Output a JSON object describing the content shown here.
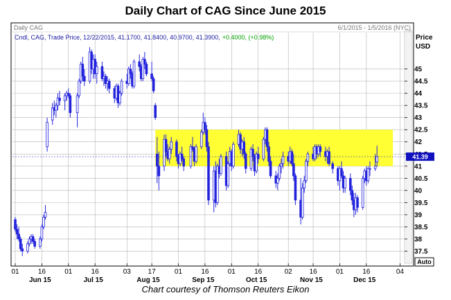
{
  "title": "Daily Chart of CAG Since June 2015",
  "caption": "Chart courtesy of Thomson Reuters Eikon",
  "chart_data": {
    "type": "candlestick",
    "header_left": "Daily CAG",
    "header_right": "6/1/2015 - 1/5/2016 (NYC)",
    "legend_text": "Cndl, CAG, Trade Price, 12/22/2015, 41.1700, 41.8400, 40.9700, 41.3900,",
    "legend_change": "+0.4000, (+0.98%)",
    "y_axis_title": [
      "Price",
      "USD"
    ],
    "ylim": [
      37.0,
      46.5
    ],
    "y_ticks": [
      {
        "value": 45,
        "label": "45",
        "bold": true
      },
      {
        "value": 44.5,
        "label": "44.5",
        "bold": false
      },
      {
        "value": 44,
        "label": "44",
        "bold": false
      },
      {
        "value": 43.5,
        "label": "43.5",
        "bold": false
      },
      {
        "value": 43,
        "label": "43",
        "bold": false
      },
      {
        "value": 42.5,
        "label": "42.5",
        "bold": false
      },
      {
        "value": 42,
        "label": "42",
        "bold": false
      },
      {
        "value": 41.5,
        "label": "41.5",
        "bold": false
      },
      {
        "value": 41,
        "label": "41",
        "bold": false
      },
      {
        "value": 40.5,
        "label": "40.5",
        "bold": false
      },
      {
        "value": 40,
        "label": "40",
        "bold": true
      },
      {
        "value": 39.5,
        "label": "39.5",
        "bold": false
      },
      {
        "value": 39,
        "label": "39",
        "bold": false
      },
      {
        "value": 38.5,
        "label": "38.5",
        "bold": false
      },
      {
        "value": 38,
        "label": "38",
        "bold": false
      },
      {
        "value": 37.5,
        "label": "37.5",
        "bold": false
      }
    ],
    "last_price_label": "41.39",
    "last_price": 41.39,
    "auto_button": "Auto",
    "highlight_zone": {
      "from_date": "2015-08-19",
      "to_date": "2015-12-31",
      "low": 41.0,
      "high": 42.5
    },
    "x_start": "2015-06-01",
    "x_end": "2016-01-05",
    "x_ticks": [
      {
        "date": "2015-06-01",
        "label": "01"
      },
      {
        "date": "2015-06-16",
        "label": "16"
      },
      {
        "date": "2015-07-01",
        "label": "01"
      },
      {
        "date": "2015-07-16",
        "label": "16"
      },
      {
        "date": "2015-08-03",
        "label": "03"
      },
      {
        "date": "2015-08-17",
        "label": "17"
      },
      {
        "date": "2015-09-01",
        "label": "01"
      },
      {
        "date": "2015-09-16",
        "label": "16"
      },
      {
        "date": "2015-10-01",
        "label": "01"
      },
      {
        "date": "2015-10-16",
        "label": "16"
      },
      {
        "date": "2015-11-02",
        "label": "02"
      },
      {
        "date": "2015-11-16",
        "label": "16"
      },
      {
        "date": "2015-12-01",
        "label": "01"
      },
      {
        "date": "2015-12-16",
        "label": "16"
      },
      {
        "date": "2016-01-04",
        "label": "04"
      }
    ],
    "month_labels": [
      {
        "date": "2015-06-15",
        "label": "Jun 15"
      },
      {
        "date": "2015-07-15",
        "label": "Jul 15"
      },
      {
        "date": "2015-08-15",
        "label": "Aug 15"
      },
      {
        "date": "2015-09-15",
        "label": "Sep 15"
      },
      {
        "date": "2015-10-15",
        "label": "Oct 15"
      },
      {
        "date": "2015-11-15",
        "label": "Nov 15"
      },
      {
        "date": "2015-12-15",
        "label": "Dec 15"
      }
    ],
    "colors": {
      "up": "#2222dd",
      "down": "#2222dd",
      "zone": "#ffff33",
      "grid": "#b4b4b4",
      "last_bg": "#1010c0",
      "legend_change": "#00a000"
    },
    "candles": [
      [
        "2015-06-01",
        38.8,
        38.9,
        38.3,
        38.4
      ],
      [
        "2015-06-02",
        38.4,
        38.6,
        38.0,
        38.2
      ],
      [
        "2015-06-03",
        38.2,
        38.5,
        37.9,
        38.0
      ],
      [
        "2015-06-04",
        38.0,
        38.1,
        37.5,
        37.6
      ],
      [
        "2015-06-05",
        37.6,
        37.8,
        37.3,
        37.5
      ],
      [
        "2015-06-08",
        37.5,
        37.9,
        37.4,
        37.8
      ],
      [
        "2015-06-09",
        37.8,
        38.1,
        37.7,
        38.0
      ],
      [
        "2015-06-10",
        38.0,
        38.2,
        37.8,
        38.1
      ],
      [
        "2015-06-11",
        38.1,
        38.2,
        37.8,
        37.9
      ],
      [
        "2015-06-12",
        37.9,
        38.0,
        37.6,
        37.7
      ],
      [
        "2015-06-15",
        37.7,
        38.1,
        37.6,
        38.0
      ],
      [
        "2015-06-16",
        38.0,
        38.6,
        37.9,
        38.5
      ],
      [
        "2015-06-17",
        38.5,
        39.0,
        38.4,
        38.9
      ],
      [
        "2015-06-18",
        38.9,
        39.4,
        38.8,
        39.1
      ],
      [
        "2015-06-19",
        41.8,
        43.0,
        41.6,
        42.8
      ],
      [
        "2015-06-22",
        42.9,
        43.6,
        42.7,
        43.4
      ],
      [
        "2015-06-23",
        43.4,
        43.7,
        43.1,
        43.3
      ],
      [
        "2015-06-24",
        43.3,
        43.6,
        43.0,
        43.5
      ],
      [
        "2015-06-25",
        43.5,
        44.0,
        43.3,
        43.8
      ],
      [
        "2015-06-26",
        43.8,
        44.1,
        43.5,
        43.7
      ],
      [
        "2015-06-29",
        43.7,
        44.0,
        43.3,
        43.9
      ],
      [
        "2015-06-30",
        43.9,
        44.1,
        43.7,
        44.0
      ],
      [
        "2015-07-01",
        44.0,
        44.2,
        43.8,
        43.9
      ],
      [
        "2015-07-02",
        43.9,
        44.0,
        43.0,
        43.2
      ],
      [
        "2015-07-06",
        43.2,
        44.0,
        42.6,
        43.9
      ],
      [
        "2015-07-07",
        43.9,
        44.6,
        43.8,
        44.5
      ],
      [
        "2015-07-08",
        44.5,
        45.3,
        44.4,
        45.2
      ],
      [
        "2015-07-09",
        45.2,
        45.5,
        44.5,
        44.7
      ],
      [
        "2015-07-10",
        44.7,
        45.0,
        44.3,
        44.5
      ],
      [
        "2015-07-13",
        44.5,
        45.9,
        44.4,
        45.7
      ],
      [
        "2015-07-14",
        45.7,
        45.8,
        44.8,
        45.0
      ],
      [
        "2015-07-15",
        45.0,
        45.6,
        44.6,
        45.4
      ],
      [
        "2015-07-16",
        45.4,
        45.6,
        44.6,
        44.8
      ],
      [
        "2015-07-17",
        44.8,
        45.3,
        44.4,
        45.1
      ],
      [
        "2015-07-20",
        45.1,
        45.3,
        44.5,
        44.6
      ],
      [
        "2015-07-21",
        44.6,
        44.9,
        44.3,
        44.7
      ],
      [
        "2015-07-22",
        44.7,
        44.8,
        44.2,
        44.4
      ],
      [
        "2015-07-23",
        44.4,
        44.7,
        44.1,
        44.5
      ],
      [
        "2015-07-24",
        44.5,
        44.6,
        44.0,
        44.2
      ],
      [
        "2015-07-27",
        44.2,
        44.3,
        43.6,
        43.8
      ],
      [
        "2015-07-28",
        43.8,
        44.4,
        43.7,
        44.3
      ],
      [
        "2015-07-29",
        44.3,
        44.4,
        43.4,
        43.6
      ],
      [
        "2015-07-30",
        43.6,
        44.1,
        43.5,
        44.0
      ],
      [
        "2015-07-31",
        44.0,
        44.6,
        43.9,
        44.5
      ],
      [
        "2015-08-03",
        44.5,
        44.8,
        44.2,
        44.4
      ],
      [
        "2015-08-04",
        44.4,
        45.1,
        44.3,
        45.0
      ],
      [
        "2015-08-05",
        45.0,
        45.2,
        44.6,
        44.8
      ],
      [
        "2015-08-06",
        44.8,
        44.9,
        44.2,
        44.3
      ],
      [
        "2015-08-07",
        44.3,
        45.4,
        44.2,
        45.3
      ],
      [
        "2015-08-10",
        45.3,
        45.6,
        44.9,
        45.1
      ],
      [
        "2015-08-11",
        45.1,
        45.2,
        44.5,
        44.6
      ],
      [
        "2015-08-12",
        44.6,
        45.5,
        44.5,
        45.4
      ],
      [
        "2015-08-13",
        45.4,
        45.7,
        45.0,
        45.2
      ],
      [
        "2015-08-14",
        45.2,
        45.3,
        44.7,
        44.8
      ],
      [
        "2015-08-17",
        44.8,
        45.3,
        44.5,
        44.6
      ],
      [
        "2015-08-18",
        44.6,
        44.7,
        44.0,
        44.1
      ],
      [
        "2015-08-19",
        43.5,
        43.6,
        42.9,
        43.0
      ],
      [
        "2015-08-20",
        41.5,
        42.2,
        40.3,
        41.0
      ],
      [
        "2015-08-21",
        41.0,
        41.6,
        40.0,
        40.6
      ],
      [
        "2015-08-24",
        41.0,
        42.3,
        40.8,
        42.1
      ],
      [
        "2015-08-25",
        42.1,
        42.3,
        41.4,
        41.6
      ],
      [
        "2015-08-26",
        41.6,
        41.9,
        41.2,
        41.3
      ],
      [
        "2015-08-27",
        41.3,
        41.8,
        41.1,
        41.7
      ],
      [
        "2015-08-28",
        41.7,
        42.2,
        41.5,
        42.0
      ],
      [
        "2015-08-31",
        42.0,
        42.1,
        41.2,
        41.4
      ],
      [
        "2015-09-01",
        41.4,
        41.5,
        40.9,
        41.1
      ],
      [
        "2015-09-02",
        41.1,
        41.6,
        41.0,
        41.5
      ],
      [
        "2015-09-03",
        41.5,
        41.8,
        41.2,
        41.3
      ],
      [
        "2015-09-04",
        41.3,
        41.4,
        40.8,
        41.0
      ],
      [
        "2015-09-08",
        41.0,
        41.9,
        40.9,
        41.8
      ],
      [
        "2015-09-09",
        41.8,
        42.2,
        41.6,
        41.7
      ],
      [
        "2015-09-10",
        41.7,
        41.8,
        41.0,
        41.2
      ],
      [
        "2015-09-11",
        41.2,
        41.9,
        41.1,
        41.8
      ],
      [
        "2015-09-14",
        41.8,
        42.5,
        41.7,
        42.4
      ],
      [
        "2015-09-15",
        42.4,
        43.2,
        42.3,
        42.8
      ],
      [
        "2015-09-16",
        42.8,
        43.0,
        42.3,
        42.5
      ],
      [
        "2015-09-17",
        42.5,
        42.7,
        41.6,
        41.8
      ],
      [
        "2015-09-18",
        41.8,
        42.0,
        39.4,
        39.6
      ],
      [
        "2015-09-21",
        39.6,
        41.0,
        39.1,
        40.8
      ],
      [
        "2015-09-22",
        40.8,
        41.2,
        39.3,
        39.5
      ],
      [
        "2015-09-23",
        39.5,
        41.1,
        39.4,
        41.0
      ],
      [
        "2015-09-24",
        41.0,
        41.3,
        40.5,
        40.7
      ],
      [
        "2015-09-25",
        40.7,
        41.5,
        40.6,
        41.4
      ],
      [
        "2015-09-28",
        41.4,
        41.6,
        40.0,
        40.2
      ],
      [
        "2015-09-29",
        40.2,
        41.2,
        40.1,
        41.1
      ],
      [
        "2015-09-30",
        41.1,
        41.8,
        41.0,
        41.6
      ],
      [
        "2015-10-01",
        41.6,
        41.7,
        40.8,
        41.0
      ],
      [
        "2015-10-02",
        41.0,
        42.0,
        40.9,
        41.9
      ],
      [
        "2015-10-05",
        41.9,
        42.5,
        41.8,
        42.3
      ],
      [
        "2015-10-06",
        42.3,
        42.4,
        41.5,
        41.7
      ],
      [
        "2015-10-07",
        41.7,
        42.1,
        41.4,
        42.0
      ],
      [
        "2015-10-08",
        42.0,
        42.2,
        41.3,
        41.5
      ],
      [
        "2015-10-09",
        41.5,
        41.6,
        40.7,
        40.9
      ],
      [
        "2015-10-12",
        40.9,
        41.8,
        40.8,
        41.7
      ],
      [
        "2015-10-13",
        41.7,
        41.9,
        41.2,
        41.4
      ],
      [
        "2015-10-14",
        41.4,
        41.5,
        40.6,
        40.8
      ],
      [
        "2015-10-15",
        40.8,
        41.6,
        40.7,
        41.5
      ],
      [
        "2015-10-16",
        41.5,
        41.8,
        41.1,
        41.3
      ],
      [
        "2015-10-19",
        41.3,
        42.2,
        41.2,
        42.1
      ],
      [
        "2015-10-20",
        42.1,
        42.6,
        41.9,
        42.5
      ],
      [
        "2015-10-21",
        42.5,
        42.6,
        41.6,
        41.8
      ],
      [
        "2015-10-22",
        41.8,
        42.0,
        41.0,
        41.2
      ],
      [
        "2015-10-23",
        41.2,
        41.4,
        40.5,
        40.6
      ],
      [
        "2015-10-26",
        40.6,
        40.8,
        40.1,
        40.3
      ],
      [
        "2015-10-27",
        40.3,
        40.7,
        40.0,
        40.5
      ],
      [
        "2015-10-28",
        40.5,
        41.1,
        40.4,
        41.0
      ],
      [
        "2015-10-29",
        41.0,
        41.3,
        40.7,
        41.1
      ],
      [
        "2015-10-30",
        41.1,
        41.6,
        40.9,
        41.4
      ],
      [
        "2015-11-02",
        41.4,
        41.6,
        41.0,
        41.2
      ],
      [
        "2015-11-03",
        41.2,
        41.8,
        41.1,
        41.6
      ],
      [
        "2015-11-04",
        41.6,
        41.7,
        41.0,
        41.1
      ],
      [
        "2015-11-05",
        41.1,
        41.5,
        40.4,
        40.6
      ],
      [
        "2015-11-06",
        40.6,
        40.7,
        39.4,
        39.6
      ],
      [
        "2015-11-09",
        39.6,
        40.5,
        38.6,
        38.9
      ],
      [
        "2015-11-10",
        38.9,
        40.3,
        38.8,
        40.1
      ],
      [
        "2015-11-11",
        40.1,
        40.6,
        39.9,
        40.4
      ],
      [
        "2015-11-12",
        40.4,
        41.3,
        40.3,
        41.2
      ],
      [
        "2015-11-13",
        41.2,
        41.6,
        41.0,
        41.5
      ],
      [
        "2015-11-16",
        41.5,
        41.8,
        41.2,
        41.3
      ],
      [
        "2015-11-17",
        41.3,
        41.9,
        41.2,
        41.8
      ],
      [
        "2015-11-18",
        41.8,
        41.9,
        41.3,
        41.5
      ],
      [
        "2015-11-19",
        41.5,
        41.9,
        41.4,
        41.8
      ],
      [
        "2015-11-20",
        41.8,
        41.9,
        41.4,
        41.6
      ],
      [
        "2015-11-23",
        41.6,
        41.8,
        41.2,
        41.4
      ],
      [
        "2015-11-24",
        41.4,
        41.7,
        41.1,
        41.6
      ],
      [
        "2015-11-25",
        41.6,
        41.8,
        41.0,
        41.1
      ],
      [
        "2015-11-27",
        41.1,
        41.2,
        40.7,
        40.9
      ],
      [
        "2015-11-30",
        40.9,
        41.0,
        40.2,
        40.4
      ],
      [
        "2015-12-01",
        40.4,
        41.0,
        40.0,
        40.9
      ],
      [
        "2015-12-02",
        40.9,
        41.2,
        40.5,
        40.6
      ],
      [
        "2015-12-03",
        40.6,
        40.8,
        39.9,
        40.1
      ],
      [
        "2015-12-04",
        40.1,
        40.6,
        39.9,
        40.5
      ],
      [
        "2015-12-07",
        40.5,
        40.7,
        39.8,
        40.0
      ],
      [
        "2015-12-08",
        40.0,
        40.2,
        39.4,
        39.6
      ],
      [
        "2015-12-09",
        39.6,
        39.9,
        38.9,
        39.2
      ],
      [
        "2015-12-10",
        39.2,
        39.9,
        39.0,
        39.7
      ],
      [
        "2015-12-11",
        39.7,
        39.8,
        39.1,
        39.3
      ],
      [
        "2015-12-14",
        39.3,
        40.6,
        39.2,
        40.5
      ],
      [
        "2015-12-15",
        40.5,
        40.9,
        40.3,
        40.8
      ],
      [
        "2015-12-16",
        40.8,
        41.0,
        40.2,
        40.4
      ],
      [
        "2015-12-17",
        40.4,
        41.0,
        40.3,
        40.9
      ],
      [
        "2015-12-18",
        40.9,
        41.2,
        40.6,
        40.9
      ],
      [
        "2015-12-21",
        40.9,
        41.5,
        40.8,
        41.0
      ],
      [
        "2015-12-22",
        41.17,
        41.84,
        40.97,
        41.39
      ]
    ]
  }
}
